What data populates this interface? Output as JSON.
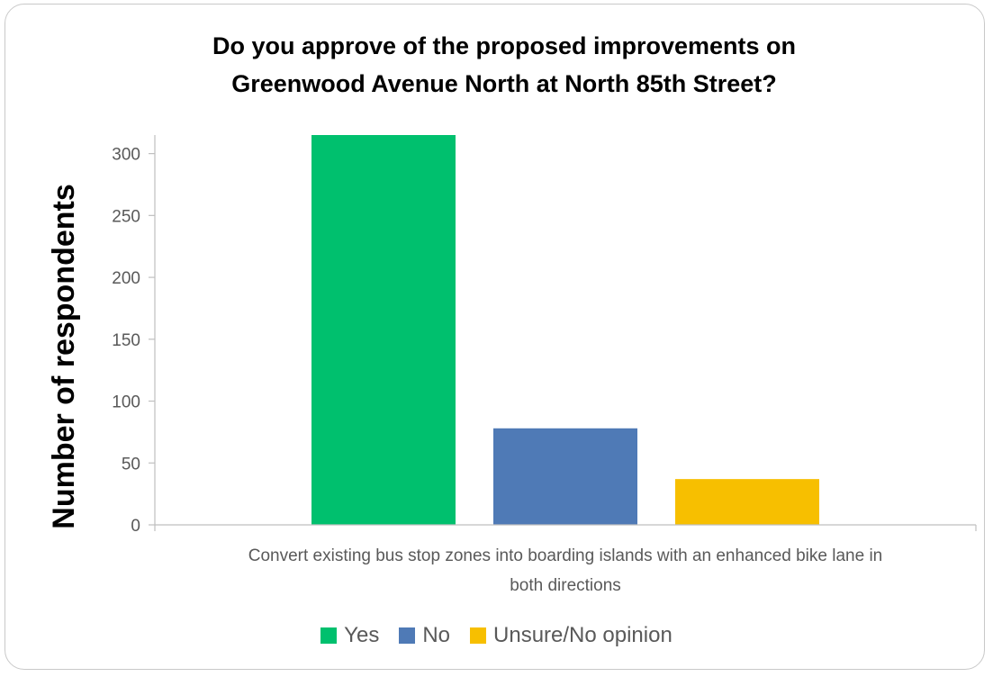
{
  "chart_data": {
    "type": "bar",
    "title_lines": [
      "Do you approve of the proposed improvements on",
      "Greenwood Avenue North at North 85th Street?"
    ],
    "ylabel": "Number of respondents",
    "category_label_lines": [
      "Convert existing bus stop zones into boarding islands with an enhanced bike lane in",
      "both directions"
    ],
    "ylim": [
      0,
      315
    ],
    "yticks": [
      0,
      50,
      100,
      150,
      200,
      250,
      300
    ],
    "grid": false,
    "legend_position": "bottom",
    "series": [
      {
        "name": "Yes",
        "value": 315,
        "color": "#00c06e"
      },
      {
        "name": "No",
        "value": 78,
        "color": "#4f7ab6"
      },
      {
        "name": "Unsure/No opinion",
        "value": 37,
        "color": "#f7bf00"
      }
    ]
  }
}
